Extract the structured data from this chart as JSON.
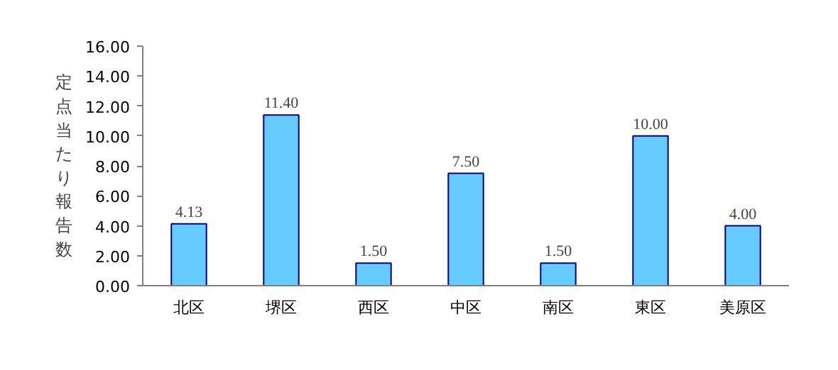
{
  "chart_data": {
    "type": "bar",
    "ylabel": "定点当たり報告数",
    "categories": [
      "北区",
      "堺区",
      "西区",
      "中区",
      "南区",
      "東区",
      "美原区"
    ],
    "values": [
      4.13,
      11.4,
      1.5,
      7.5,
      1.5,
      10.0,
      4.0
    ],
    "value_labels": [
      "4.13",
      "11.40",
      "1.50",
      "7.50",
      "1.50",
      "10.00",
      "4.00"
    ],
    "color": "#66ccff",
    "ylim": [
      0,
      16
    ],
    "yticks": [
      {
        "value": 0,
        "label": "0.00"
      },
      {
        "value": 2,
        "label": "2.00"
      },
      {
        "value": 4,
        "label": "4.00"
      },
      {
        "value": 6,
        "label": "6.00"
      },
      {
        "value": 8,
        "label": "8.00"
      },
      {
        "value": 10,
        "label": "10.00"
      },
      {
        "value": 12,
        "label": "12.00"
      },
      {
        "value": 14,
        "label": "14.00"
      },
      {
        "value": 16,
        "label": "16.00"
      }
    ],
    "grid": false
  }
}
